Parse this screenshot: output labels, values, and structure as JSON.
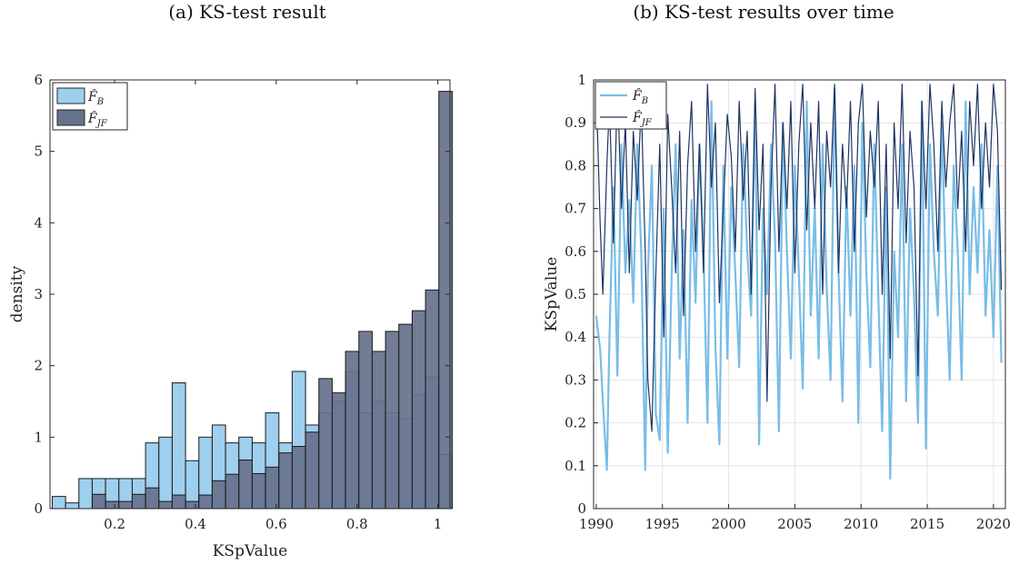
{
  "chart_data": [
    {
      "type": "bar",
      "title": "(a) KS-test result",
      "xlabel": "KSpValue",
      "ylabel": "density",
      "xlim": [
        0.04,
        1.03
      ],
      "ylim": [
        0,
        6
      ],
      "xticks": [
        0.2,
        0.4,
        0.6,
        0.8,
        1
      ],
      "xtick_labels": [
        "0.2",
        "0.4",
        "0.6",
        "0.8",
        "1"
      ],
      "yticks": [
        0,
        1,
        2,
        3,
        4,
        5,
        6
      ],
      "bin_width": 0.033,
      "legend_position": "top-left",
      "series": [
        {
          "name": "F̂B",
          "legend": {
            "main": "F̂",
            "sub": "B"
          },
          "color": "#9fcfee",
          "bins": [
            [
              0.062,
              0.17
            ],
            [
              0.095,
              0.08
            ],
            [
              0.128,
              0.42
            ],
            [
              0.161,
              0.42
            ],
            [
              0.194,
              0.42
            ],
            [
              0.227,
              0.42
            ],
            [
              0.26,
              0.42
            ],
            [
              0.293,
              0.92
            ],
            [
              0.326,
              1.0
            ],
            [
              0.359,
              1.76
            ],
            [
              0.392,
              0.67
            ],
            [
              0.425,
              1.0
            ],
            [
              0.458,
              1.17
            ],
            [
              0.491,
              0.92
            ],
            [
              0.524,
              1.0
            ],
            [
              0.557,
              0.92
            ],
            [
              0.59,
              1.34
            ],
            [
              0.623,
              0.92
            ],
            [
              0.656,
              1.92
            ],
            [
              0.689,
              1.17
            ],
            [
              0.722,
              1.34
            ],
            [
              0.755,
              1.5
            ],
            [
              0.788,
              1.92
            ],
            [
              0.821,
              1.34
            ],
            [
              0.854,
              1.5
            ],
            [
              0.887,
              1.34
            ],
            [
              0.92,
              1.26
            ],
            [
              0.953,
              1.59
            ],
            [
              0.986,
              1.84
            ],
            [
              1.019,
              0.76
            ]
          ]
        },
        {
          "name": "F̂JF",
          "legend": {
            "main": "F̂",
            "sub": "JF"
          },
          "color": "#66728c",
          "bins": [
            [
              0.161,
              0.2
            ],
            [
              0.194,
              0.1
            ],
            [
              0.227,
              0.1
            ],
            [
              0.26,
              0.2
            ],
            [
              0.293,
              0.29
            ],
            [
              0.326,
              0.1
            ],
            [
              0.359,
              0.19
            ],
            [
              0.392,
              0.1
            ],
            [
              0.425,
              0.19
            ],
            [
              0.458,
              0.39
            ],
            [
              0.491,
              0.48
            ],
            [
              0.524,
              0.68
            ],
            [
              0.557,
              0.49
            ],
            [
              0.59,
              0.58
            ],
            [
              0.623,
              0.78
            ],
            [
              0.656,
              0.87
            ],
            [
              0.689,
              1.07
            ],
            [
              0.722,
              1.82
            ],
            [
              0.755,
              1.62
            ],
            [
              0.788,
              2.2
            ],
            [
              0.821,
              2.48
            ],
            [
              0.854,
              2.2
            ],
            [
              0.887,
              2.48
            ],
            [
              0.92,
              2.58
            ],
            [
              0.953,
              2.77
            ],
            [
              0.986,
              3.06
            ],
            [
              1.019,
              5.84
            ]
          ]
        }
      ]
    },
    {
      "type": "line",
      "title": "(b) KS-test results over time",
      "xlabel": "",
      "ylabel": "KSpValue",
      "xlim": [
        1989.8,
        2020.9
      ],
      "ylim": [
        0,
        1
      ],
      "xticks": [
        1990,
        1995,
        2000,
        2005,
        2010,
        2015,
        2020
      ],
      "yticks": [
        0,
        0.1,
        0.2,
        0.3,
        0.4,
        0.5,
        0.6,
        0.7,
        0.8,
        0.9,
        1
      ],
      "grid": true,
      "legend_position": "top-left",
      "series": [
        {
          "name": "F̂B",
          "legend": {
            "main": "F̂",
            "sub": "B"
          },
          "color": "#79bde6",
          "x": [
            1990.0,
            1990.3,
            1990.5,
            1990.8,
            1991.0,
            1991.3,
            1991.6,
            1991.9,
            1992.2,
            1992.5,
            1992.8,
            1993.1,
            1993.4,
            1993.7,
            1993.9,
            1994.2,
            1994.5,
            1994.8,
            1995.1,
            1995.4,
            1995.7,
            1996.0,
            1996.3,
            1996.6,
            1996.9,
            1997.2,
            1997.5,
            1997.8,
            1998.1,
            1998.4,
            1998.7,
            1999.0,
            1999.3,
            1999.6,
            1999.9,
            2000.2,
            2000.5,
            2000.8,
            2001.1,
            2001.4,
            2001.7,
            2002.0,
            2002.3,
            2002.6,
            2002.9,
            2003.2,
            2003.5,
            2003.8,
            2004.1,
            2004.4,
            2004.7,
            2005.0,
            2005.3,
            2005.6,
            2005.9,
            2006.2,
            2006.5,
            2006.8,
            2007.1,
            2007.4,
            2007.7,
            2008.0,
            2008.3,
            2008.6,
            2008.9,
            2009.2,
            2009.5,
            2009.8,
            2010.1,
            2010.4,
            2010.7,
            2011.0,
            2011.3,
            2011.6,
            2011.9,
            2012.2,
            2012.5,
            2012.8,
            2013.1,
            2013.4,
            2013.7,
            2014.0,
            2014.3,
            2014.6,
            2014.9,
            2015.2,
            2015.5,
            2015.8,
            2016.1,
            2016.4,
            2016.7,
            2017.0,
            2017.3,
            2017.6,
            2017.9,
            2018.2,
            2018.5,
            2018.8,
            2019.1,
            2019.4,
            2019.7,
            2020.0,
            2020.3,
            2020.6
          ],
          "y": [
            0.45,
            0.37,
            0.25,
            0.09,
            0.4,
            0.75,
            0.31,
            0.85,
            0.55,
            0.72,
            0.48,
            0.85,
            0.6,
            0.09,
            0.55,
            0.8,
            0.22,
            0.16,
            0.7,
            0.13,
            0.55,
            0.85,
            0.35,
            0.65,
            0.2,
            0.72,
            0.48,
            0.85,
            0.6,
            0.2,
            0.95,
            0.38,
            0.15,
            0.8,
            0.35,
            0.75,
            0.55,
            0.33,
            0.85,
            0.6,
            0.45,
            0.95,
            0.15,
            0.7,
            0.5,
            0.85,
            0.63,
            0.18,
            0.9,
            0.6,
            0.35,
            0.8,
            0.55,
            0.28,
            0.95,
            0.45,
            0.7,
            0.35,
            0.85,
            0.52,
            0.3,
            0.98,
            0.55,
            0.25,
            0.75,
            0.45,
            0.8,
            0.2,
            0.9,
            0.55,
            0.33,
            0.85,
            0.5,
            0.18,
            0.75,
            0.07,
            0.6,
            0.4,
            0.85,
            0.25,
            0.7,
            0.5,
            0.2,
            0.95,
            0.14,
            0.85,
            0.6,
            0.45,
            0.9,
            0.55,
            0.3,
            0.8,
            0.6,
            0.3,
            0.95,
            0.5,
            0.75,
            0.55,
            0.85,
            0.45,
            0.65,
            0.4,
            0.8,
            0.34
          ]
        },
        {
          "name": "F̂JF",
          "legend": {
            "main": "F̂",
            "sub": "JF"
          },
          "color": "#1f3461",
          "x": [
            1990.0,
            1990.3,
            1990.5,
            1990.8,
            1991.0,
            1991.3,
            1991.6,
            1991.9,
            1992.2,
            1992.5,
            1992.8,
            1993.1,
            1993.4,
            1993.7,
            1993.9,
            1994.2,
            1994.5,
            1994.8,
            1995.1,
            1995.4,
            1995.7,
            1996.0,
            1996.3,
            1996.6,
            1996.9,
            1997.2,
            1997.5,
            1997.8,
            1998.1,
            1998.4,
            1998.7,
            1999.0,
            1999.3,
            1999.6,
            1999.9,
            2000.2,
            2000.5,
            2000.8,
            2001.1,
            2001.4,
            2001.7,
            2002.0,
            2002.3,
            2002.6,
            2002.9,
            2003.2,
            2003.5,
            2003.8,
            2004.1,
            2004.4,
            2004.7,
            2005.0,
            2005.3,
            2005.6,
            2005.9,
            2006.2,
            2006.5,
            2006.8,
            2007.1,
            2007.4,
            2007.7,
            2008.0,
            2008.3,
            2008.6,
            2008.9,
            2009.2,
            2009.5,
            2009.8,
            2010.1,
            2010.4,
            2010.7,
            2011.0,
            2011.3,
            2011.6,
            2011.9,
            2012.2,
            2012.5,
            2012.8,
            2013.1,
            2013.4,
            2013.7,
            2014.0,
            2014.3,
            2014.6,
            2014.9,
            2015.2,
            2015.5,
            2015.8,
            2016.1,
            2016.4,
            2016.7,
            2017.0,
            2017.3,
            2017.6,
            2017.9,
            2018.2,
            2018.5,
            2018.8,
            2019.1,
            2019.4,
            2019.7,
            2020.0,
            2020.3,
            2020.6
          ],
          "y": [
            0.98,
            0.66,
            0.5,
            0.8,
            0.95,
            0.62,
            0.99,
            0.7,
            0.9,
            0.55,
            0.88,
            0.72,
            0.95,
            0.6,
            0.3,
            0.18,
            0.55,
            0.85,
            0.4,
            0.92,
            0.75,
            0.55,
            0.88,
            0.45,
            0.8,
            0.95,
            0.6,
            0.85,
            0.55,
            0.99,
            0.75,
            0.9,
            0.48,
            0.7,
            0.92,
            0.82,
            0.6,
            0.95,
            0.72,
            0.88,
            0.5,
            0.98,
            0.65,
            0.85,
            0.25,
            0.75,
            0.99,
            0.6,
            0.9,
            0.7,
            0.95,
            0.55,
            0.85,
            0.99,
            0.65,
            0.9,
            0.7,
            0.95,
            0.5,
            0.88,
            0.75,
            0.99,
            0.55,
            0.85,
            0.7,
            0.95,
            0.6,
            0.9,
            0.99,
            0.68,
            0.88,
            0.75,
            0.95,
            0.5,
            0.85,
            0.35,
            0.9,
            0.7,
            0.99,
            0.62,
            0.88,
            0.75,
            0.31,
            0.95,
            0.7,
            0.99,
            0.85,
            0.6,
            0.95,
            0.75,
            0.9,
            0.99,
            0.7,
            0.88,
            0.6,
            0.95,
            0.8,
            0.99,
            0.7,
            0.9,
            0.75,
            0.99,
            0.88,
            0.51
          ]
        }
      ]
    }
  ]
}
